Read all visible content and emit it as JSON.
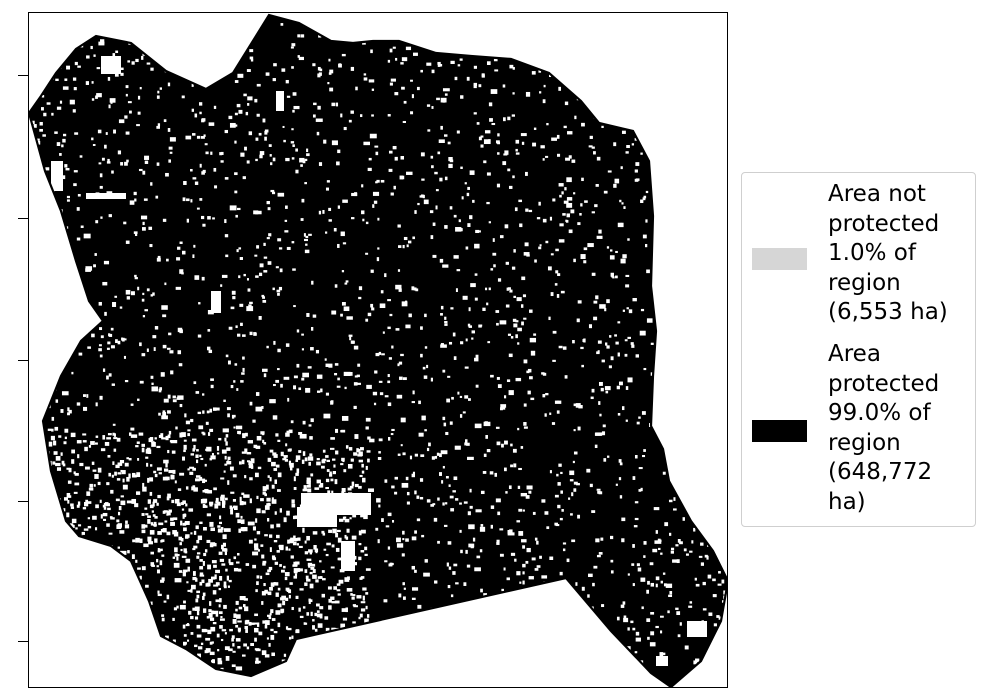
{
  "map": {
    "protected_color": "#000000",
    "not_protected_color": "#ffffff",
    "boundary_color": "#000000"
  },
  "legend": {
    "items": [
      {
        "label": "Area not\nprotected\n1.0% of\nregion\n(6,553 ha)",
        "color": "#d6d6d6"
      },
      {
        "label": "Area\nprotected\n99.0% of\nregion\n(648,772\nha)",
        "color": "#000000"
      }
    ]
  }
}
